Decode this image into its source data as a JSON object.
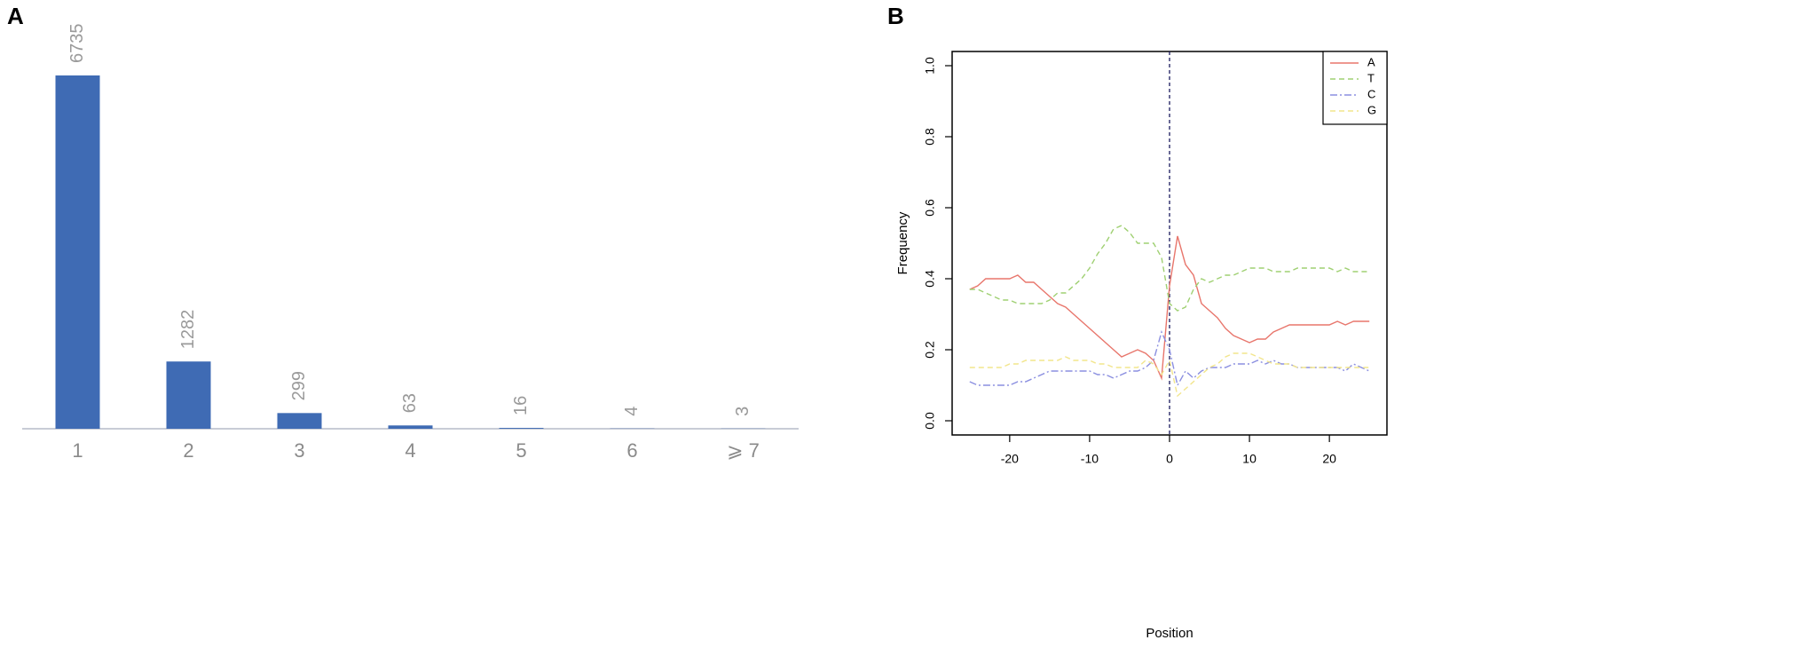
{
  "chart_data": [
    {
      "type": "bar",
      "label": "A",
      "categories": [
        "1",
        "2",
        "3",
        "4",
        "5",
        "6",
        "⩾ 7"
      ],
      "values": [
        6735,
        1282,
        299,
        63,
        16,
        4,
        3
      ],
      "color": "#3f6bb4"
    },
    {
      "type": "line",
      "label": "B",
      "x_label": "Position",
      "y_label": "Frequency",
      "x": [
        -25,
        -24,
        -23,
        -22,
        -21,
        -20,
        -19,
        -18,
        -17,
        -16,
        -15,
        -14,
        -13,
        -12,
        -11,
        -10,
        -9,
        -8,
        -7,
        -6,
        -5,
        -4,
        -3,
        -2,
        -1,
        0,
        1,
        2,
        3,
        4,
        5,
        6,
        7,
        8,
        9,
        10,
        11,
        12,
        13,
        14,
        15,
        16,
        17,
        18,
        19,
        20,
        21,
        22,
        23,
        24,
        25
      ],
      "series": [
        {
          "name": "A",
          "color": "#e8766c",
          "dash": "none",
          "values": [
            0.37,
            0.38,
            0.4,
            0.4,
            0.4,
            0.4,
            0.41,
            0.39,
            0.39,
            0.37,
            0.35,
            0.33,
            0.32,
            0.3,
            0.28,
            0.26,
            0.24,
            0.22,
            0.2,
            0.18,
            0.19,
            0.2,
            0.19,
            0.17,
            0.12,
            0.38,
            0.52,
            0.44,
            0.41,
            0.33,
            0.31,
            0.29,
            0.26,
            0.24,
            0.23,
            0.22,
            0.23,
            0.23,
            0.25,
            0.26,
            0.27,
            0.27,
            0.27,
            0.27,
            0.27,
            0.27,
            0.28,
            0.27,
            0.28,
            0.28,
            0.28
          ]
        },
        {
          "name": "T",
          "color": "#9fd072",
          "dash": "6,4",
          "values": [
            0.37,
            0.37,
            0.36,
            0.35,
            0.34,
            0.34,
            0.33,
            0.33,
            0.33,
            0.33,
            0.34,
            0.36,
            0.36,
            0.38,
            0.4,
            0.43,
            0.47,
            0.5,
            0.54,
            0.55,
            0.53,
            0.5,
            0.5,
            0.5,
            0.46,
            0.33,
            0.31,
            0.32,
            0.37,
            0.4,
            0.39,
            0.4,
            0.41,
            0.41,
            0.42,
            0.43,
            0.43,
            0.43,
            0.42,
            0.42,
            0.42,
            0.43,
            0.43,
            0.43,
            0.43,
            0.43,
            0.42,
            0.43,
            0.42,
            0.42,
            0.42
          ]
        },
        {
          "name": "C",
          "color": "#8b8fe0",
          "dash": "8,3,2,3",
          "values": [
            0.11,
            0.1,
            0.1,
            0.1,
            0.1,
            0.1,
            0.11,
            0.11,
            0.12,
            0.13,
            0.14,
            0.14,
            0.14,
            0.14,
            0.14,
            0.14,
            0.13,
            0.13,
            0.12,
            0.13,
            0.14,
            0.14,
            0.15,
            0.17,
            0.25,
            0.2,
            0.1,
            0.14,
            0.12,
            0.14,
            0.15,
            0.15,
            0.15,
            0.16,
            0.16,
            0.16,
            0.17,
            0.16,
            0.17,
            0.16,
            0.16,
            0.15,
            0.15,
            0.15,
            0.15,
            0.15,
            0.15,
            0.14,
            0.16,
            0.15,
            0.14
          ]
        },
        {
          "name": "G",
          "color": "#f2e58c",
          "dash": "6,4",
          "values": [
            0.15,
            0.15,
            0.15,
            0.15,
            0.15,
            0.16,
            0.16,
            0.17,
            0.17,
            0.17,
            0.17,
            0.17,
            0.18,
            0.17,
            0.17,
            0.17,
            0.16,
            0.16,
            0.15,
            0.15,
            0.15,
            0.15,
            0.17,
            0.16,
            0.13,
            0.17,
            0.07,
            0.09,
            0.11,
            0.13,
            0.15,
            0.16,
            0.18,
            0.19,
            0.19,
            0.19,
            0.18,
            0.17,
            0.16,
            0.16,
            0.16,
            0.15,
            0.15,
            0.15,
            0.15,
            0.15,
            0.15,
            0.15,
            0.15,
            0.15,
            0.15
          ]
        }
      ],
      "xlim": [
        -27.2,
        27.2
      ],
      "xticks": [
        -20,
        -10,
        0,
        10,
        20
      ],
      "ylim": [
        -0.04,
        1.04
      ],
      "yticks": [
        {
          "value": 0,
          "label": "0.0"
        },
        0.2,
        0.4,
        0.6,
        0.8,
        {
          "value": 1,
          "label": "1.0"
        }
      ],
      "vline": 0,
      "legend": "top-right",
      "grid": false
    }
  ]
}
